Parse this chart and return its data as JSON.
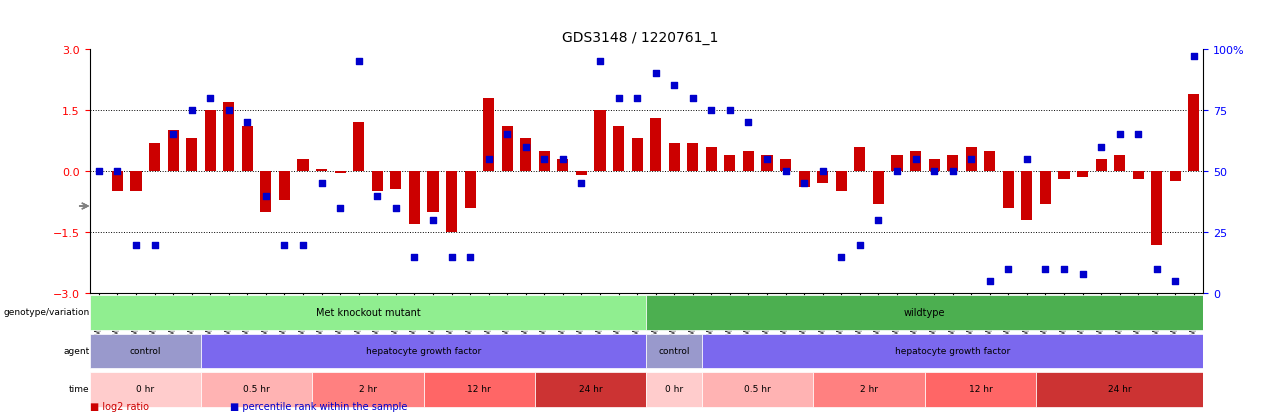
{
  "title": "GDS3148 / 1220761_1",
  "samples": [
    "GSM100050",
    "GSM100052",
    "GSM100065",
    "GSM100066",
    "GSM100067",
    "GSM100068",
    "GSM100088",
    "GSM100089",
    "GSM100090",
    "GSM100091",
    "GSM100092",
    "GSM100093",
    "GSM100051",
    "GSM100053",
    "GSM100106",
    "GSM100107",
    "GSM100108",
    "GSM100109",
    "GSM100075",
    "GSM100076",
    "GSM100077",
    "GSM100078",
    "GSM100079",
    "GSM100080",
    "GSM100059",
    "GSM100060",
    "GSM100084",
    "GSM100085",
    "GSM100086",
    "GSM100087",
    "GSM100054",
    "GSM100055",
    "GSM100061",
    "GSM100062",
    "GSM100063",
    "GSM100064",
    "GSM100094",
    "GSM100095",
    "GSM100096",
    "GSM100097",
    "GSM100098",
    "GSM100099",
    "GSM100100",
    "GSM100101",
    "GSM100102",
    "GSM100103",
    "GSM100104",
    "GSM100105",
    "GSM100069",
    "GSM100070",
    "GSM100071",
    "GSM100072",
    "GSM100073",
    "GSM100074",
    "GSM100056",
    "GSM100057",
    "GSM100058",
    "GSM100081",
    "GSM100082",
    "GSM100083"
  ],
  "log2_ratio": [
    0.0,
    -0.5,
    -0.5,
    0.7,
    1.0,
    0.8,
    1.5,
    1.7,
    1.1,
    -1.0,
    -0.7,
    0.3,
    0.05,
    -0.05,
    1.2,
    -0.5,
    -0.45,
    -1.3,
    -1.0,
    -1.5,
    -0.9,
    1.8,
    1.1,
    0.8,
    0.5,
    0.3,
    -0.1,
    1.5,
    1.1,
    0.8,
    1.3,
    0.7,
    0.7,
    0.6,
    0.4,
    0.5,
    0.4,
    0.3,
    -0.4,
    -0.3,
    -0.5,
    0.6,
    -0.8,
    0.4,
    0.5,
    0.3,
    0.4,
    0.6,
    0.5,
    -0.9,
    -1.2,
    -0.8,
    -0.2,
    -0.15,
    0.3,
    0.4,
    -0.2,
    -1.8,
    -0.25,
    1.9
  ],
  "percentile": [
    50,
    50,
    20,
    20,
    65,
    75,
    80,
    75,
    70,
    40,
    20,
    20,
    45,
    35,
    95,
    40,
    35,
    15,
    30,
    15,
    15,
    55,
    65,
    60,
    55,
    55,
    45,
    95,
    80,
    80,
    90,
    85,
    80,
    75,
    75,
    70,
    55,
    50,
    45,
    50,
    15,
    20,
    30,
    50,
    55,
    50,
    50,
    55,
    5,
    10,
    55,
    10,
    10,
    8,
    60,
    65,
    65,
    10,
    5,
    97
  ],
  "genotype_spans": [
    {
      "label": "Met knockout mutant",
      "start": 0,
      "end": 29,
      "color": "#90EE90"
    },
    {
      "label": "wildtype",
      "start": 30,
      "end": 59,
      "color": "#4CAF50"
    }
  ],
  "agent_spans": [
    {
      "label": "control",
      "start": 0,
      "end": 5,
      "color": "#9999CC"
    },
    {
      "label": "hepatocyte growth factor",
      "start": 6,
      "end": 29,
      "color": "#7B68EE"
    },
    {
      "label": "control",
      "start": 30,
      "end": 32,
      "color": "#9999CC"
    },
    {
      "label": "hepatocyte growth factor",
      "start": 33,
      "end": 59,
      "color": "#7B68EE"
    }
  ],
  "time_spans": [
    {
      "label": "0 hr",
      "start": 0,
      "end": 5,
      "color": "#FFCCCC"
    },
    {
      "label": "0.5 hr",
      "start": 6,
      "end": 11,
      "color": "#FFB3B3"
    },
    {
      "label": "2 hr",
      "start": 12,
      "end": 17,
      "color": "#FF8080"
    },
    {
      "label": "12 hr",
      "start": 18,
      "end": 23,
      "color": "#FF6666"
    },
    {
      "label": "24 hr",
      "start": 24,
      "end": 29,
      "color": "#CC3333"
    },
    {
      "label": "0 hr",
      "start": 30,
      "end": 32,
      "color": "#FFCCCC"
    },
    {
      "label": "0.5 hr",
      "start": 33,
      "end": 38,
      "color": "#FFB3B3"
    },
    {
      "label": "2 hr",
      "start": 39,
      "end": 44,
      "color": "#FF8080"
    },
    {
      "label": "12 hr",
      "start": 45,
      "end": 50,
      "color": "#FF6666"
    },
    {
      "label": "24 hr",
      "start": 51,
      "end": 59,
      "color": "#CC3333"
    }
  ],
  "bar_color": "#CC0000",
  "dot_color": "#0000CC",
  "ylim_left": [
    -3,
    3
  ],
  "ylim_right": [
    0,
    100
  ],
  "yticks_left": [
    -3,
    -1.5,
    0,
    1.5,
    3
  ],
  "yticks_right": [
    0,
    25,
    50,
    75,
    100
  ],
  "hlines": [
    -1.5,
    0,
    1.5
  ],
  "background_color": "#ffffff"
}
